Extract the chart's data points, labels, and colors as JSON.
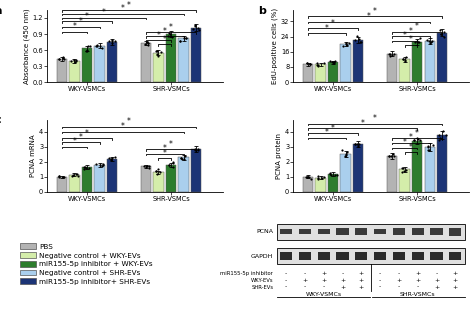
{
  "colors": {
    "PBS": "#b3b3b3",
    "NC_WKY": "#d4edaa",
    "miR_WKY": "#2d7d2d",
    "NC_SHR": "#aacfed",
    "miR_SHR": "#1c3476"
  },
  "panel_a": {
    "title": "a",
    "ylabel": "Absorbance (450 nm)",
    "ylim": [
      0,
      1.35
    ],
    "yticks": [
      0.0,
      0.3,
      0.6,
      0.9,
      1.2
    ],
    "groups": [
      "WKY-VSMCs",
      "SHR-VSMCs"
    ],
    "means": [
      [
        0.43,
        0.4,
        0.63,
        0.68,
        0.75
      ],
      [
        0.73,
        0.55,
        0.9,
        0.82,
        1.02
      ]
    ],
    "sems": [
      [
        0.04,
        0.04,
        0.05,
        0.05,
        0.05
      ],
      [
        0.04,
        0.05,
        0.05,
        0.05,
        0.06
      ]
    ]
  },
  "panel_b": {
    "title": "b",
    "ylabel": "EdU-positive cells (%)",
    "ylim": [
      0,
      38
    ],
    "yticks": [
      0,
      8,
      16,
      24,
      32
    ],
    "groups": [
      "WKY-VSMCs",
      "SHR-VSMCs"
    ],
    "means": [
      [
        9.5,
        9.5,
        10.5,
        20.0,
        22.0
      ],
      [
        15.0,
        12.0,
        21.0,
        21.5,
        26.0
      ]
    ],
    "sems": [
      [
        0.8,
        0.8,
        0.8,
        1.2,
        1.5
      ],
      [
        1.2,
        1.2,
        1.5,
        1.5,
        1.8
      ]
    ]
  },
  "panel_c": {
    "title": "c",
    "ylabel": "PCNA mRNA",
    "ylim": [
      0,
      4.8
    ],
    "yticks": [
      0,
      1,
      2,
      3,
      4
    ],
    "groups": [
      "WKY-VSMCs",
      "SHR-VSMCs"
    ],
    "means": [
      [
        1.0,
        1.15,
        1.65,
        1.8,
        2.2
      ],
      [
        1.7,
        1.3,
        1.8,
        2.3,
        2.85
      ]
    ],
    "sems": [
      [
        0.08,
        0.1,
        0.12,
        0.12,
        0.15
      ],
      [
        0.12,
        0.12,
        0.15,
        0.15,
        0.18
      ]
    ]
  },
  "panel_d": {
    "title": "",
    "ylabel": "PCNA protein",
    "ylim": [
      0,
      4.8
    ],
    "yticks": [
      0,
      1,
      2,
      3,
      4
    ],
    "groups": [
      "WKY-VSMCs",
      "SHR-VSMCs"
    ],
    "means": [
      [
        1.0,
        0.95,
        1.2,
        2.5,
        3.2
      ],
      [
        2.4,
        1.5,
        3.4,
        3.0,
        3.8
      ]
    ],
    "sems": [
      [
        0.1,
        0.1,
        0.12,
        0.2,
        0.2
      ],
      [
        0.18,
        0.18,
        0.2,
        0.25,
        0.25
      ]
    ]
  },
  "legend_labels": [
    "PBS",
    "Negative control + WKY-EVs",
    "miR155-5p inhibitor + WKY-EVs",
    "Negative control + SHR-EVs",
    "miR155-5p inhibitor+ SHR-EVs"
  ],
  "wb_signs": {
    "miR155-5p inhibitor": [
      "-",
      "-",
      "+",
      "-",
      "+",
      "-",
      "-",
      "+",
      "-",
      "+"
    ],
    "WKY-EVs": [
      "-",
      "+",
      "+",
      "+",
      "+",
      "-",
      "+",
      "+",
      "+",
      "+"
    ],
    "SHR-EVs": [
      "-",
      "-",
      "-",
      "+",
      "+",
      "-",
      "-",
      "-",
      "+",
      "+"
    ]
  }
}
